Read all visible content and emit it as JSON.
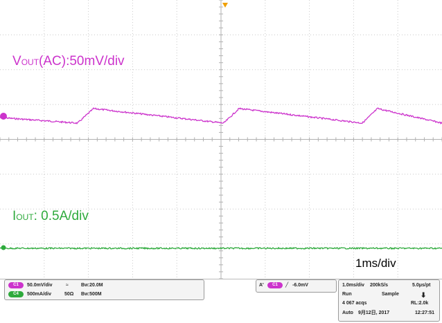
{
  "screen": {
    "vout_label": {
      "main": "V",
      "sub": "OUT",
      "rest": "(AC):50mV/div"
    },
    "iout_label": {
      "main": "I",
      "sub": "OUT",
      "rest": ": 0.5A/div"
    },
    "timebase_label": "1ms/div"
  },
  "channels": [
    {
      "badge": "C1",
      "scale": "50.0mV/div",
      "coupling": "≈",
      "bw": "B",
      "bw_sub": "W",
      "bw_value": ":20.0M",
      "color": "#cc33cc"
    },
    {
      "badge": "C4",
      "scale": "500mA/div",
      "impedance": "50Ω",
      "bw": "B",
      "bw_sub": "W",
      "bw_value": ":500M",
      "color": "#2eaa3c"
    }
  ],
  "trigger": {
    "source_badge": "A'",
    "channel_badge": "C1",
    "slope": "╱",
    "level": "-6.0mV"
  },
  "acquisition": {
    "timebase": "1.0ms/div",
    "sample_rate": "200kS/s",
    "resolution": "5.0μs/pt",
    "state": "Run",
    "mode": "Sample",
    "acqs": "4 067 acqs",
    "record_length": "RL:2.0k",
    "trigger_mode": "Auto",
    "date": "9月12日, 2017",
    "time": "12:27:51"
  },
  "colors": {
    "ch1": "#cc33cc",
    "ch4": "#2eaa3c",
    "grid": "#d0d0d0",
    "trigger": "#f0a000"
  }
}
